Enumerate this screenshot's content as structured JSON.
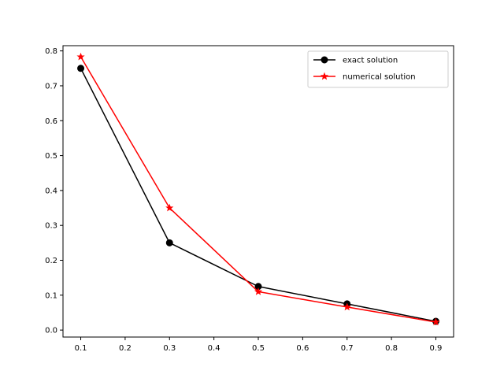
{
  "chart_data": {
    "type": "line",
    "title": "",
    "xlabel": "",
    "ylabel": "",
    "xlim": [
      0.06,
      0.94
    ],
    "ylim": [
      -0.02,
      0.815
    ],
    "x_ticks": [
      0.1,
      0.2,
      0.3,
      0.4,
      0.5,
      0.6,
      0.7,
      0.8,
      0.9
    ],
    "x_tick_labels": [
      "0.1",
      "0.2",
      "0.3",
      "0.4",
      "0.5",
      "0.6",
      "0.7",
      "0.8",
      "0.9"
    ],
    "y_ticks": [
      0.0,
      0.1,
      0.2,
      0.3,
      0.4,
      0.5,
      0.6,
      0.7,
      0.8
    ],
    "y_tick_labels": [
      "0.0",
      "0.1",
      "0.2",
      "0.3",
      "0.4",
      "0.5",
      "0.6",
      "0.7",
      "0.8"
    ],
    "grid": false,
    "legend_position": "top-right",
    "x": [
      0.1,
      0.3,
      0.5,
      0.7,
      0.9
    ],
    "series": [
      {
        "name": "exact solution",
        "values": [
          0.75,
          0.25,
          0.125,
          0.075,
          0.025
        ],
        "color": "#000000",
        "marker": "circle"
      },
      {
        "name": "numerical solution",
        "values": [
          0.783,
          0.35,
          0.11,
          0.066,
          0.023
        ],
        "color": "#ff0000",
        "marker": "star"
      }
    ]
  }
}
